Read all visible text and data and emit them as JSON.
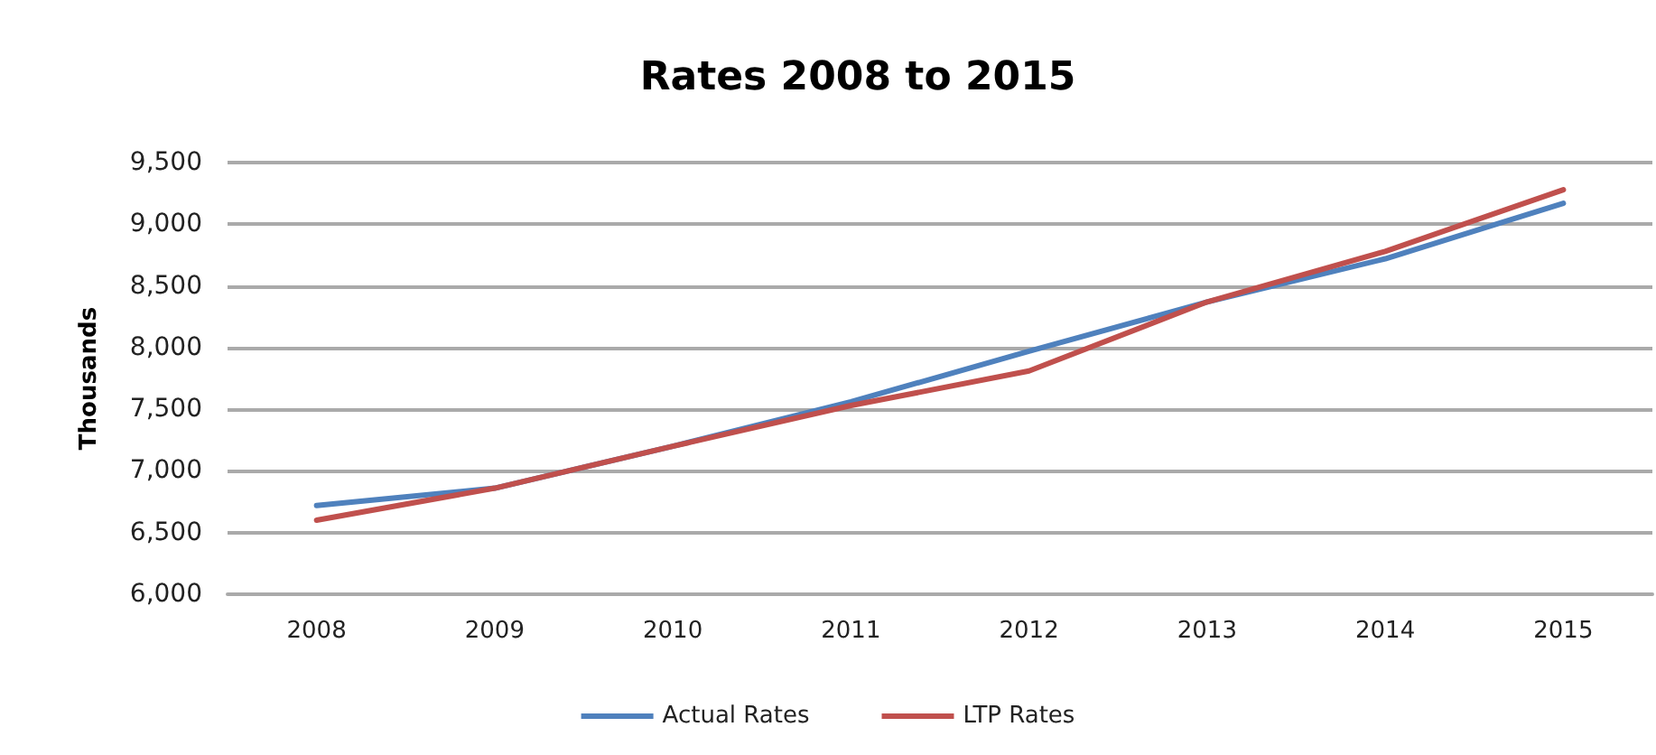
{
  "chart_data": {
    "type": "line",
    "title": "Rates 2008 to 2015",
    "ylabel": "Thousands",
    "categories": [
      "2008",
      "2009",
      "2010",
      "2011",
      "2012",
      "2013",
      "2014",
      "2015"
    ],
    "series": [
      {
        "name": "Actual Rates",
        "color": "#4f81bd",
        "values": [
          6720,
          6860,
          7200,
          7560,
          7970,
          8370,
          8720,
          9170
        ]
      },
      {
        "name": "LTP Rates",
        "color": "#c0504d",
        "values": [
          6600,
          6860,
          7200,
          7530,
          7810,
          8370,
          8780,
          9280
        ]
      }
    ],
    "ylim": [
      6000,
      9500
    ],
    "yticks": [
      {
        "value": 6000,
        "label": "6,000"
      },
      {
        "value": 6500,
        "label": "6,500"
      },
      {
        "value": 7000,
        "label": "7,000"
      },
      {
        "value": 7500,
        "label": "7,500"
      },
      {
        "value": 8000,
        "label": "8,000"
      },
      {
        "value": 8500,
        "label": "8,500"
      },
      {
        "value": 9000,
        "label": "9,000"
      },
      {
        "value": 9500,
        "label": "9,500"
      }
    ],
    "grid": "y",
    "legend": "bottom",
    "marker": "none",
    "line_style": "solid"
  }
}
